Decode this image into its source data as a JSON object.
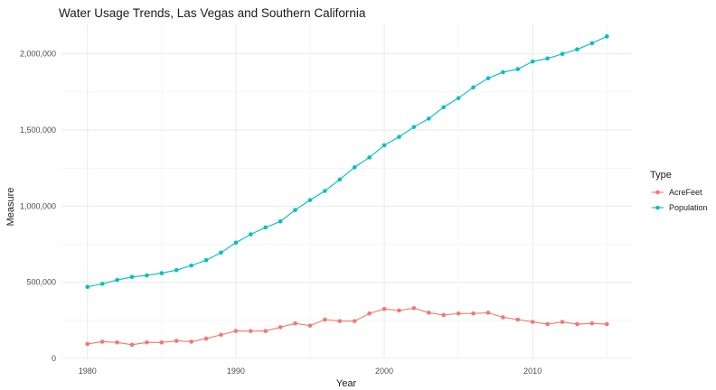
{
  "chart_data": {
    "type": "line",
    "title": "Water Usage Trends, Las Vegas and Southern California",
    "xlabel": "Year",
    "ylabel": "Measure",
    "x": [
      1980,
      1981,
      1982,
      1983,
      1984,
      1985,
      1986,
      1987,
      1988,
      1989,
      1990,
      1991,
      1992,
      1993,
      1994,
      1995,
      1996,
      1997,
      1998,
      1999,
      2000,
      2001,
      2002,
      2003,
      2004,
      2005,
      2006,
      2007,
      2008,
      2009,
      2010,
      2011,
      2012,
      2013,
      2014,
      2015
    ],
    "xlim": [
      1978.25,
      2016.75
    ],
    "ylim": [
      0,
      2200000
    ],
    "x_ticks": [
      1980,
      1990,
      2000,
      2010
    ],
    "x_tick_labels": [
      "1980",
      "1990",
      "2000",
      "2010"
    ],
    "y_ticks": [
      0,
      500000,
      1000000,
      1500000,
      2000000
    ],
    "y_tick_labels": [
      "0",
      "500,000",
      "1,000,000",
      "1,500,000",
      "2,000,000"
    ],
    "legend_title": "Type",
    "legend_position": "right",
    "grid": true,
    "series": [
      {
        "name": "AcreFeet",
        "color": "#F8766D",
        "values": [
          95000,
          110000,
          105000,
          90000,
          105000,
          105000,
          115000,
          110000,
          130000,
          155000,
          180000,
          180000,
          180000,
          205000,
          230000,
          215000,
          255000,
          245000,
          245000,
          295000,
          325000,
          315000,
          330000,
          300000,
          285000,
          295000,
          295000,
          300000,
          270000,
          255000,
          240000,
          225000,
          240000,
          225000,
          230000,
          225000
        ]
      },
      {
        "name": "Population",
        "color": "#00BFC4",
        "values": [
          470000,
          490000,
          515000,
          535000,
          545000,
          560000,
          580000,
          610000,
          645000,
          695000,
          760000,
          815000,
          860000,
          900000,
          975000,
          1040000,
          1100000,
          1175000,
          1255000,
          1320000,
          1400000,
          1455000,
          1520000,
          1575000,
          1650000,
          1710000,
          1780000,
          1840000,
          1880000,
          1900000,
          1950000,
          1970000,
          2000000,
          2030000,
          2070000,
          2115000
        ]
      }
    ]
  }
}
